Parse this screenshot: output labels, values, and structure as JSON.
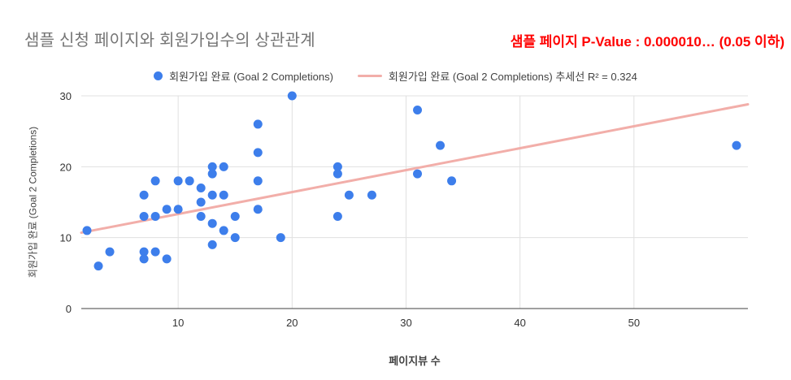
{
  "header": {
    "title": "샘플 신청 페이지와 회원가입수의 상관관계",
    "annotation": "샘플 페이지 P-Value : 0.000010… (0.05 이하)",
    "annotation_color": "#ff0000"
  },
  "legend": {
    "series1_label": "회원가입 완료 (Goal 2 Completions)",
    "series2_label": "회원가입 완료 (Goal 2 Completions) 추세선 R² = 0.324"
  },
  "chart_data": {
    "type": "scatter",
    "title": "샘플 신청 페이지와 회원가입수의 상관관계",
    "xlabel": "페이지뷰 수",
    "ylabel": "회원가입 완료 (Goal 2 Completions)",
    "xlim": [
      1.5,
      60
    ],
    "ylim": [
      0,
      30
    ],
    "x_ticks": [
      10,
      20,
      30,
      40,
      50
    ],
    "y_ticks": [
      0,
      10,
      20,
      30
    ],
    "grid": true,
    "legend_position": "top",
    "colors": {
      "points": "#3D7EEB",
      "trendline": "#F2AEA9",
      "gridline": "#E0E0E0",
      "axis": "#424242"
    },
    "series": [
      {
        "name": "회원가입 완료 (Goal 2 Completions)",
        "type": "scatter",
        "color": "#3D7EEB",
        "points": [
          [
            2,
            11
          ],
          [
            3,
            6
          ],
          [
            4,
            8
          ],
          [
            7,
            13
          ],
          [
            7,
            16
          ],
          [
            7,
            8
          ],
          [
            7,
            7
          ],
          [
            8,
            18
          ],
          [
            8,
            13
          ],
          [
            8,
            8
          ],
          [
            9,
            7
          ],
          [
            9,
            14
          ],
          [
            10,
            18
          ],
          [
            10,
            14
          ],
          [
            11,
            18
          ],
          [
            12,
            17
          ],
          [
            12,
            15
          ],
          [
            12,
            13
          ],
          [
            13,
            20
          ],
          [
            13,
            19
          ],
          [
            13,
            16
          ],
          [
            13,
            12
          ],
          [
            13,
            9
          ],
          [
            14,
            20
          ],
          [
            14,
            16
          ],
          [
            14,
            11
          ],
          [
            15,
            13
          ],
          [
            15,
            10
          ],
          [
            17,
            26
          ],
          [
            17,
            22
          ],
          [
            17,
            18
          ],
          [
            17,
            14
          ],
          [
            20,
            30
          ],
          [
            19,
            10
          ],
          [
            24,
            20
          ],
          [
            24,
            19
          ],
          [
            24,
            13
          ],
          [
            25,
            16
          ],
          [
            27,
            16
          ],
          [
            31,
            28
          ],
          [
            31,
            19
          ],
          [
            33,
            23
          ],
          [
            34,
            18
          ],
          [
            59,
            23
          ]
        ]
      },
      {
        "name": "회원가입 완료 (Goal 2 Completions) 추세선 R² = 0.324",
        "type": "trendline",
        "color": "#F2AEA9",
        "r_squared": 0.324,
        "trend": {
          "x1": 1.5,
          "y1": 10.7,
          "x2": 60,
          "y2": 28.8
        }
      }
    ]
  }
}
